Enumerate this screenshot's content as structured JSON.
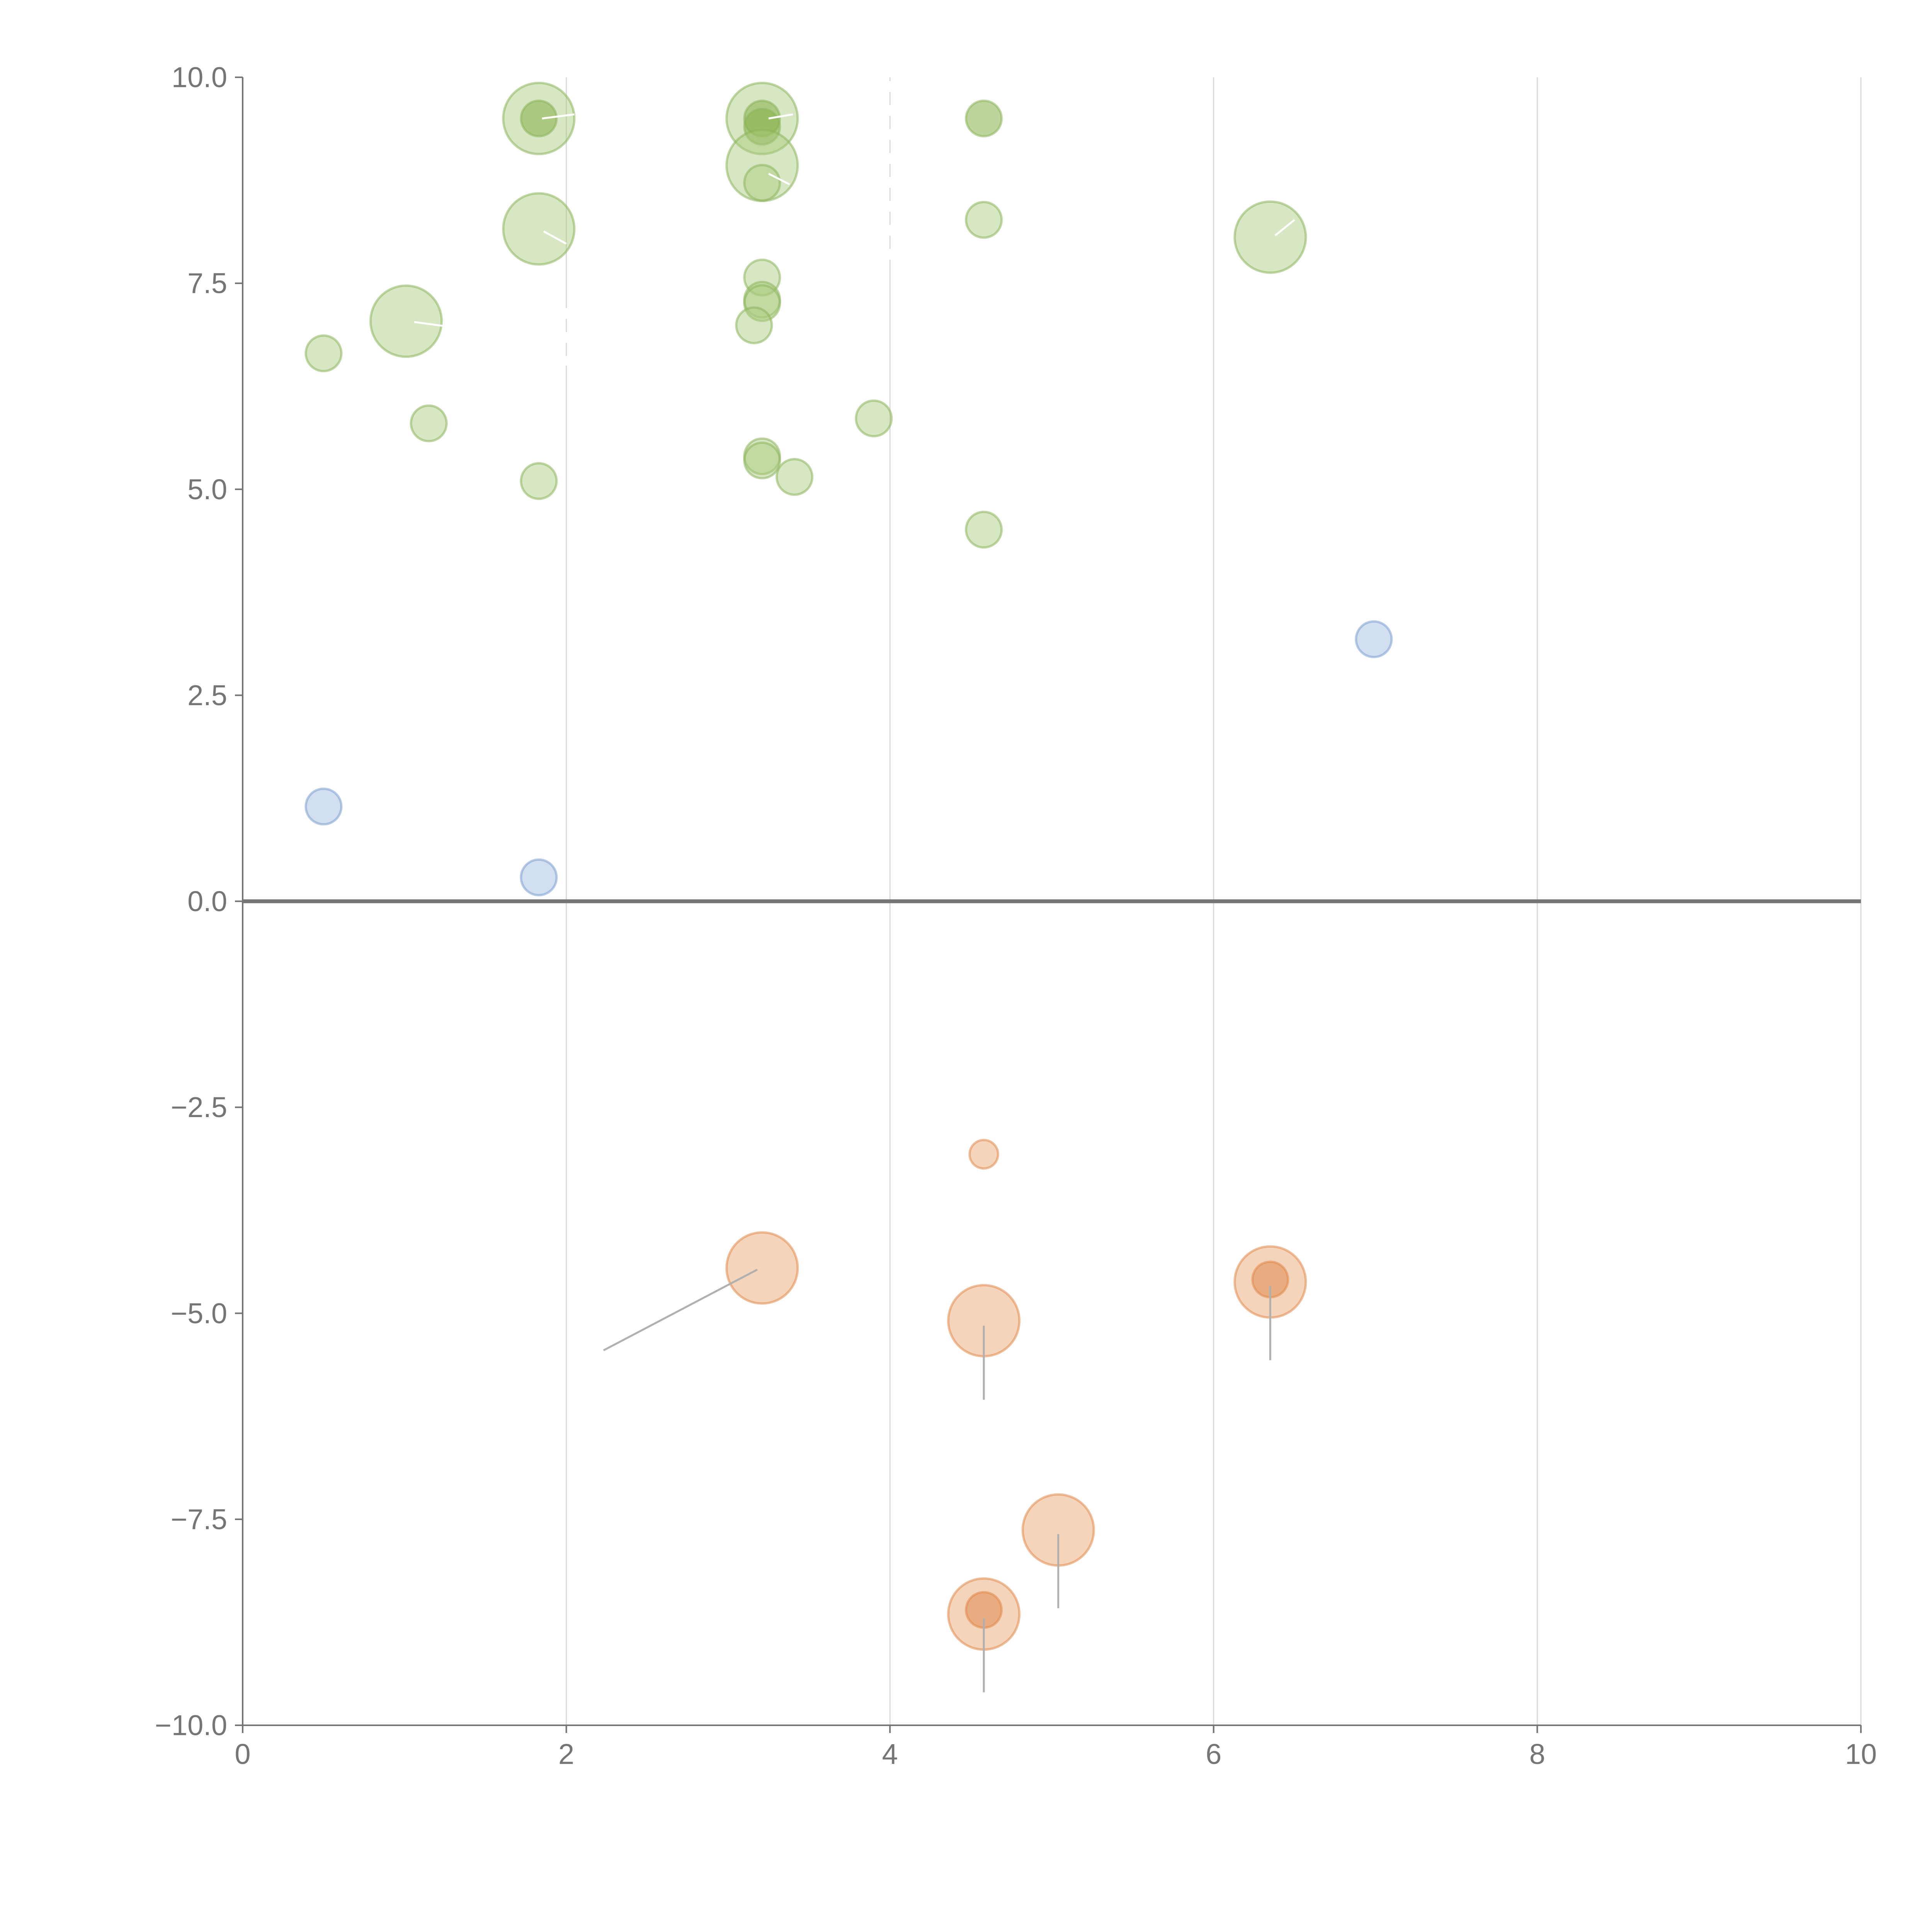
{
  "colors": {
    "green_fill": "#a9c97a",
    "green_stroke": "#8db55c",
    "green_dark": "#86b04a",
    "orange_fill": "#e8a06a",
    "orange_stroke": "#e08a4d",
    "orange_dark": "#dc8a4e",
    "blue_fill": "#9bb7dd",
    "blue_stroke": "#7c9fd0",
    "axis": "#757575",
    "grid": "#d9d9d9"
  },
  "chart_data": {
    "type": "scatter",
    "title": "",
    "xlabel": "",
    "ylabel": "",
    "xlim": [
      0,
      10
    ],
    "ylim": [
      -10,
      10
    ],
    "grid": "vertical",
    "x_ticks": [
      {
        "value": 0,
        "label": "0"
      },
      {
        "value": 2,
        "label": "2"
      },
      {
        "value": 4,
        "label": "4"
      },
      {
        "value": 6,
        "label": "6"
      },
      {
        "value": 8,
        "label": "8"
      },
      {
        "value": 10,
        "label": "10"
      }
    ],
    "y_ticks": [
      {
        "value": 10,
        "label": "10.0"
      },
      {
        "value": 7.5,
        "label": "7.5"
      },
      {
        "value": 5,
        "label": "5.0"
      },
      {
        "value": 2.5,
        "label": "2.5"
      },
      {
        "value": 0,
        "label": "0.0"
      },
      {
        "value": -2.5,
        "label": "−2.5"
      },
      {
        "value": -5,
        "label": "−5.0"
      },
      {
        "value": -7.5,
        "label": "−7.5"
      },
      {
        "value": -10,
        "label": "−10.0"
      }
    ],
    "series": [
      {
        "name": "green",
        "points": [
          {
            "x": 1.83,
            "y": 9.5,
            "size": 2,
            "dark": false
          },
          {
            "x": 1.83,
            "y": 9.5,
            "size": 1,
            "dark": true
          },
          {
            "x": 3.21,
            "y": 9.5,
            "size": 2,
            "dark": false
          },
          {
            "x": 3.21,
            "y": 9.5,
            "size": 1,
            "dark": true
          },
          {
            "x": 3.21,
            "y": 9.4,
            "size": 1,
            "dark": true
          },
          {
            "x": 4.58,
            "y": 9.5,
            "size": 1,
            "dark": true
          },
          {
            "x": 3.21,
            "y": 8.93,
            "size": 2,
            "dark": false
          },
          {
            "x": 3.21,
            "y": 8.72,
            "size": 1,
            "dark": false
          },
          {
            "x": 4.58,
            "y": 8.27,
            "size": 1,
            "dark": false
          },
          {
            "x": 1.83,
            "y": 8.16,
            "size": 2,
            "dark": false
          },
          {
            "x": 6.35,
            "y": 8.06,
            "size": 2,
            "dark": false
          },
          {
            "x": 3.21,
            "y": 7.57,
            "size": 1,
            "dark": false
          },
          {
            "x": 3.21,
            "y": 7.3,
            "size": 1,
            "dark": false
          },
          {
            "x": 3.21,
            "y": 7.26,
            "size": 1,
            "dark": false
          },
          {
            "x": 1.01,
            "y": 7.04,
            "size": 2,
            "dark": false
          },
          {
            "x": 3.16,
            "y": 6.99,
            "size": 1,
            "dark": false
          },
          {
            "x": 0.5,
            "y": 6.65,
            "size": 1,
            "dark": false
          },
          {
            "x": 3.9,
            "y": 5.86,
            "size": 1,
            "dark": false
          },
          {
            "x": 1.15,
            "y": 5.8,
            "size": 1,
            "dark": false
          },
          {
            "x": 3.21,
            "y": 5.4,
            "size": 1,
            "dark": false
          },
          {
            "x": 3.21,
            "y": 5.35,
            "size": 1,
            "dark": false
          },
          {
            "x": 3.41,
            "y": 5.15,
            "size": 1,
            "dark": false
          },
          {
            "x": 1.83,
            "y": 5.1,
            "size": 1,
            "dark": false
          },
          {
            "x": 4.58,
            "y": 4.51,
            "size": 1,
            "dark": false
          }
        ]
      },
      {
        "name": "blue",
        "points": [
          {
            "x": 6.99,
            "y": 3.18,
            "size": 1,
            "dark": false
          },
          {
            "x": 0.5,
            "y": 1.15,
            "size": 1,
            "dark": false
          },
          {
            "x": 1.83,
            "y": 0.29,
            "size": 1,
            "dark": false
          }
        ]
      },
      {
        "name": "orange",
        "points": [
          {
            "x": 4.58,
            "y": -3.07,
            "size": 0.8,
            "dark": false
          },
          {
            "x": 3.21,
            "y": -4.45,
            "size": 2,
            "dark": false
          },
          {
            "x": 6.35,
            "y": -4.62,
            "size": 2,
            "dark": false
          },
          {
            "x": 6.35,
            "y": -4.59,
            "size": 1,
            "dark": true
          },
          {
            "x": 4.58,
            "y": -5.09,
            "size": 2,
            "dark": false
          },
          {
            "x": 5.04,
            "y": -7.63,
            "size": 2,
            "dark": false
          },
          {
            "x": 4.58,
            "y": -8.65,
            "size": 2,
            "dark": false
          },
          {
            "x": 4.58,
            "y": -8.6,
            "size": 1,
            "dark": true
          }
        ]
      }
    ],
    "annotation_leaders": [
      {
        "from": [
          3.18,
          -4.47
        ],
        "to": [
          2.23,
          -5.45
        ],
        "style": "dark"
      },
      {
        "from": [
          4.58,
          -5.15
        ],
        "to": [
          4.58,
          -6.05
        ],
        "style": "dark"
      },
      {
        "from": [
          6.35,
          -4.67
        ],
        "to": [
          6.35,
          -5.57
        ],
        "style": "dark"
      },
      {
        "from": [
          5.04,
          -7.68
        ],
        "to": [
          5.04,
          -8.58
        ],
        "style": "dark"
      },
      {
        "from": [
          4.58,
          -8.7
        ],
        "to": [
          4.58,
          -9.6
        ],
        "style": "dark"
      },
      {
        "from": [
          1.85,
          9.5
        ],
        "to": [
          2.05,
          9.55
        ],
        "style": "light"
      },
      {
        "from": [
          3.25,
          9.5
        ],
        "to": [
          3.4,
          9.55
        ],
        "style": "light"
      },
      {
        "from": [
          3.25,
          8.83
        ],
        "to": [
          3.38,
          8.7
        ],
        "style": "light"
      },
      {
        "from": [
          1.86,
          8.13
        ],
        "to": [
          2.0,
          7.98
        ],
        "style": "light"
      },
      {
        "from": [
          6.38,
          8.08
        ],
        "to": [
          6.5,
          8.27
        ],
        "style": "light"
      },
      {
        "from": [
          1.06,
          7.03
        ],
        "to": [
          1.25,
          6.98
        ],
        "style": "light"
      }
    ]
  }
}
